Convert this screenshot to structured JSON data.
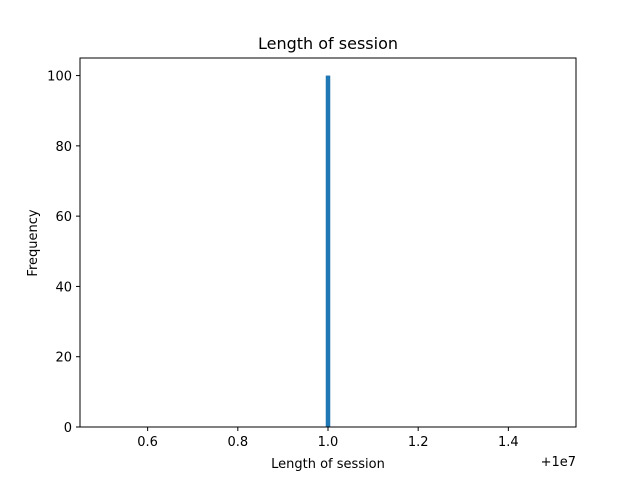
{
  "chart_data": {
    "type": "bar",
    "title": "Length of session",
    "xlabel": "Length of session",
    "ylabel": "Frequency",
    "x_offset_label": "+1e7",
    "xlim": [
      0.45,
      1.55
    ],
    "ylim": [
      0,
      105
    ],
    "x_ticks": [
      0.6,
      0.8,
      1.0,
      1.2,
      1.4
    ],
    "x_tick_labels": [
      "0.6",
      "0.8",
      "1.0",
      "1.2",
      "1.4"
    ],
    "y_ticks": [
      0,
      20,
      40,
      60,
      80,
      100
    ],
    "y_tick_labels": [
      "0",
      "20",
      "40",
      "60",
      "80",
      "100"
    ],
    "bars": [
      {
        "x0": 0.995,
        "x1": 1.005,
        "value": 100
      }
    ],
    "grid": false,
    "colors": {
      "bar": "#1f77b4",
      "axes": "#000000",
      "background": "#ffffff"
    }
  }
}
